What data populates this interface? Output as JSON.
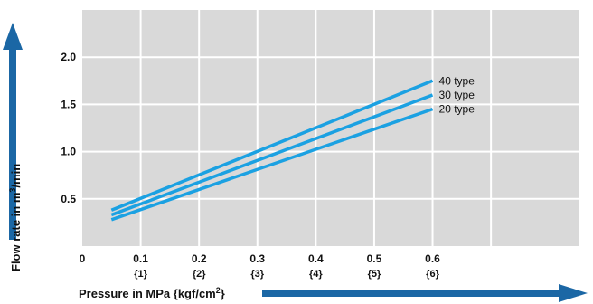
{
  "chart_data": {
    "type": "line",
    "xlabel": "Pressure in MPa {kgf/cm2}",
    "ylabel": "Flow rate in m3/min",
    "xlim": [
      0,
      0.85
    ],
    "ylim": [
      0,
      2.5
    ],
    "x_ticks": [
      {
        "value": 0,
        "label": "0",
        "sub": ""
      },
      {
        "value": 0.1,
        "label": "0.1",
        "sub": "{1}"
      },
      {
        "value": 0.2,
        "label": "0.2",
        "sub": "{2}"
      },
      {
        "value": 0.3,
        "label": "0.3",
        "sub": "{3}"
      },
      {
        "value": 0.4,
        "label": "0.4",
        "sub": "{4}"
      },
      {
        "value": 0.5,
        "label": "0.5",
        "sub": "{5}"
      },
      {
        "value": 0.6,
        "label": "0.6",
        "sub": "{6}"
      }
    ],
    "y_ticks": [
      {
        "value": 0.5,
        "label": "0.5"
      },
      {
        "value": 1.0,
        "label": "1.0"
      },
      {
        "value": 1.5,
        "label": "1.5"
      },
      {
        "value": 2.0,
        "label": "2.0"
      }
    ],
    "grid": true,
    "colors": {
      "background": "#d9d9d9",
      "line": "#1ba1e2",
      "grid": "#ffffff",
      "arrow": "#1b67a5"
    },
    "series": [
      {
        "name": "40 type",
        "x": [
          0.05,
          0.6
        ],
        "y": [
          0.38,
          1.75
        ]
      },
      {
        "name": "30 type",
        "x": [
          0.05,
          0.6
        ],
        "y": [
          0.33,
          1.6
        ]
      },
      {
        "name": "20 type",
        "x": [
          0.05,
          0.6
        ],
        "y": [
          0.28,
          1.45
        ]
      }
    ]
  }
}
